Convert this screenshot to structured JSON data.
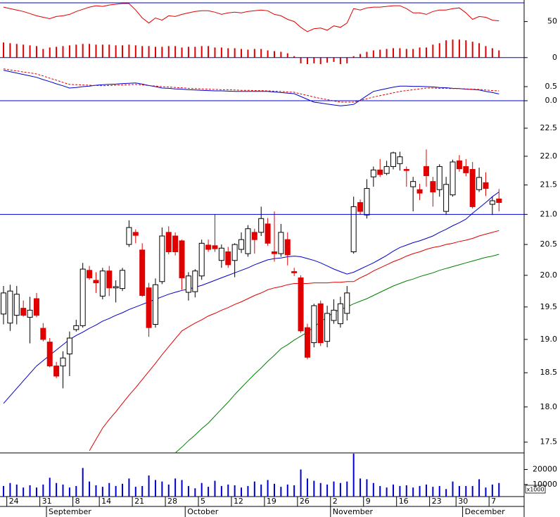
{
  "chart_data": [
    {
      "type": "combo",
      "ylim": [
        -10,
        76
      ],
      "yticks": [
        50,
        0
      ],
      "ref_lines": [
        0
      ],
      "ref_color": "#0000cc",
      "series": [
        {
          "kind": "bar",
          "color": "#e00000",
          "values": [
            21,
            20,
            19,
            18,
            17,
            16,
            12,
            14,
            15,
            16,
            17,
            18,
            19,
            19,
            18,
            18,
            18,
            17,
            17,
            18,
            17,
            16,
            16,
            15,
            15,
            16,
            16,
            14,
            15,
            15,
            16,
            16,
            14,
            14,
            13,
            13,
            12,
            11,
            12,
            12,
            10,
            9,
            8,
            6,
            2,
            -8,
            -9,
            -8,
            -9,
            -7,
            -6,
            -9,
            -8,
            2,
            5,
            8,
            10,
            11,
            12,
            13,
            13,
            12,
            12,
            14,
            14,
            18,
            20,
            24,
            25,
            25,
            24,
            22,
            20,
            16,
            13,
            10
          ]
        },
        {
          "kind": "line",
          "color": "#e00000",
          "values": [
            70,
            68,
            66,
            64,
            61,
            58,
            56,
            54,
            57,
            58,
            60,
            64,
            67,
            70,
            72,
            71,
            73,
            74,
            75,
            75,
            66,
            55,
            48,
            55,
            52,
            58,
            57,
            60,
            62,
            64,
            65,
            65,
            63,
            60,
            62,
            63,
            62,
            64,
            65,
            66,
            65,
            60,
            58,
            53,
            50,
            42,
            36,
            40,
            41,
            38,
            44,
            42,
            48,
            68,
            66,
            69,
            70,
            70,
            71,
            72,
            72,
            68,
            62,
            62,
            60,
            64,
            66,
            66,
            68,
            69,
            62,
            53,
            57,
            56,
            52,
            51
          ]
        }
      ]
    },
    {
      "type": "line",
      "ylim": [
        -0.2,
        1.4
      ],
      "yticks": [
        0.5,
        {
          "value": 0,
          "label": "0.0"
        }
      ],
      "ref_lines": [
        0
      ],
      "ref_color": "#0000cc",
      "series": [
        {
          "color": "#0000cc",
          "dashed": false,
          "values": [
            1.08,
            1.03,
            0.98,
            0.93,
            0.88,
            0.83,
            0.75,
            0.68,
            0.6,
            0.53,
            0.45,
            0.47,
            0.5,
            0.52,
            0.55,
            0.57,
            0.58,
            0.59,
            0.61,
            0.62,
            0.63,
            0.59,
            0.54,
            0.5,
            0.45,
            0.44,
            0.42,
            0.41,
            0.39,
            0.38,
            0.37,
            0.36,
            0.35,
            0.35,
            0.34,
            0.33,
            0.33,
            0.33,
            0.33,
            0.33,
            0.33,
            0.31,
            0.29,
            0.27,
            0.25,
            0.15,
            0.05,
            -0.05,
            -0.08,
            -0.12,
            -0.15,
            -0.18,
            -0.16,
            -0.13,
            0.02,
            0.18,
            0.33,
            0.38,
            0.43,
            0.48,
            0.52,
            0.52,
            0.51,
            0.51,
            0.5,
            0.49,
            0.47,
            0.46,
            0.44,
            0.43,
            0.41,
            0.4,
            0.38,
            0.33,
            0.29,
            0.24
          ]
        },
        {
          "color": "#e00000",
          "dashed": true,
          "values": [
            1.13,
            1.09,
            1.06,
            1.02,
            0.99,
            0.95,
            0.88,
            0.8,
            0.73,
            0.65,
            0.58,
            0.57,
            0.56,
            0.55,
            0.54,
            0.53,
            0.54,
            0.55,
            0.56,
            0.57,
            0.58,
            0.56,
            0.54,
            0.52,
            0.5,
            0.49,
            0.47,
            0.46,
            0.44,
            0.43,
            0.42,
            0.41,
            0.4,
            0.39,
            0.39,
            0.38,
            0.37,
            0.37,
            0.36,
            0.36,
            0.35,
            0.34,
            0.33,
            0.31,
            0.3,
            0.24,
            0.19,
            0.13,
            0.08,
            0.04,
            -0.01,
            -0.05,
            -0.05,
            -0.05,
            0.01,
            0.07,
            0.13,
            0.18,
            0.23,
            0.28,
            0.33,
            0.36,
            0.39,
            0.42,
            0.45,
            0.45,
            0.44,
            0.44,
            0.43,
            0.43,
            0.42,
            0.41,
            0.4,
            0.38,
            0.36,
            0.35
          ]
        }
      ]
    },
    {
      "type": "candlestick",
      "log_scale": true,
      "ylim": [
        17.35,
        23.0
      ],
      "yticks": [
        22.5,
        {
          "value": 22,
          "label": "22.0"
        },
        21.5,
        {
          "value": 21,
          "label": "21.0"
        },
        20.5,
        {
          "value": 20,
          "label": "20.0"
        },
        19.5,
        {
          "value": 19,
          "label": "19.0"
        },
        18.5,
        {
          "value": 18,
          "label": "18.0"
        },
        17.5
      ],
      "ref_lines": [
        21
      ],
      "ref_color": "#0000cc",
      "up_color": "#ffffff",
      "down_color": "#e00000",
      "outline_color": "#000000",
      "open": [
        19.39,
        19.25,
        19.37,
        19.48,
        19.34,
        19.63,
        19.17,
        18.96,
        18.6,
        18.6,
        18.78,
        19.15,
        19.21,
        20.08,
        19.92,
        19.67,
        20.07,
        19.8,
        19.79,
        20.5,
        20.7,
        20.41,
        19.8,
        19.23,
        19.9,
        20.7,
        20.64,
        20.56,
        19.73,
        19.74,
        19.99,
        20.49,
        20.48,
        20.24,
        20.38,
        20.24,
        20.42,
        20.35,
        20.7,
        20.7,
        20.84,
        20.38,
        20.35,
        20.58,
        20.06,
        19.96,
        19.18,
        18.95,
        19.55,
        18.97,
        19.29,
        19.24,
        19.4,
        20.38,
        21.2,
        20.99,
        21.64,
        21.76,
        21.7,
        21.82,
        21.87,
        21.77,
        21.47,
        21.42,
        21.82,
        21.56,
        21.42,
        21.05,
        21.33,
        21.92,
        21.82,
        21.77,
        21.42,
        21.54,
        21.17,
        21.26
      ],
      "high": [
        19.83,
        19.85,
        19.83,
        19.6,
        19.66,
        19.72,
        19.25,
        19.02,
        18.66,
        18.82,
        19.12,
        19.3,
        20.2,
        20.15,
        20.05,
        20.12,
        20.15,
        19.92,
        20.12,
        20.9,
        20.75,
        20.52,
        19.88,
        19.95,
        20.78,
        20.8,
        20.7,
        20.58,
        20.05,
        20.1,
        20.58,
        20.58,
        21.0,
        20.5,
        20.46,
        20.52,
        20.7,
        20.82,
        20.76,
        21.13,
        20.94,
        21.05,
        20.84,
        20.7,
        20.12,
        20.0,
        19.24,
        19.55,
        19.6,
        19.52,
        19.62,
        19.66,
        19.83,
        21.3,
        21.25,
        21.6,
        21.82,
        21.95,
        21.92,
        22.08,
        22.08,
        21.82,
        21.64,
        21.52,
        22.12,
        21.64,
        21.86,
        21.64,
        21.94,
        22.02,
        21.95,
        21.9,
        21.8,
        21.72,
        21.3,
        21.43
      ],
      "low": [
        19.23,
        19.13,
        19.23,
        19.35,
        18.94,
        19.34,
        18.97,
        18.58,
        18.42,
        18.27,
        18.45,
        19.12,
        19.18,
        19.93,
        19.72,
        19.62,
        19.67,
        19.57,
        19.75,
        20.46,
        20.52,
        19.66,
        19.04,
        19.18,
        19.86,
        20.34,
        20.32,
        19.77,
        19.6,
        19.65,
        19.93,
        20.38,
        20.38,
        20.12,
        20.12,
        19.97,
        20.36,
        20.3,
        20.35,
        20.64,
        20.48,
        20.22,
        20.3,
        20.16,
        19.99,
        19.1,
        18.7,
        18.88,
        18.9,
        18.88,
        19.24,
        19.18,
        19.29,
        20.35,
        21.0,
        20.93,
        21.47,
        21.64,
        21.67,
        21.77,
        21.75,
        21.47,
        21.05,
        21.24,
        21.47,
        21.13,
        21.3,
        20.99,
        21.3,
        21.73,
        21.65,
        21.1,
        21.38,
        21.31,
        20.99,
        21.05
      ],
      "close": [
        19.72,
        19.75,
        19.7,
        19.37,
        19.45,
        19.37,
        19.0,
        18.6,
        18.45,
        18.72,
        19.02,
        19.21,
        20.1,
        19.96,
        19.88,
        20.07,
        19.8,
        19.82,
        20.08,
        20.78,
        20.65,
        19.68,
        19.18,
        19.85,
        20.64,
        20.38,
        20.38,
        19.96,
        19.99,
        20.07,
        20.52,
        20.42,
        20.43,
        20.44,
        20.17,
        20.5,
        20.58,
        20.76,
        20.58,
        20.93,
        20.52,
        20.35,
        20.7,
        20.33,
        20.04,
        19.13,
        18.73,
        19.52,
        18.95,
        19.4,
        19.45,
        19.55,
        19.72,
        21.13,
        21.05,
        21.44,
        21.76,
        21.68,
        21.82,
        22.06,
        21.99,
        21.75,
        21.56,
        21.36,
        21.66,
        21.38,
        21.82,
        21.51,
        21.9,
        21.78,
        21.71,
        21.13,
        21.63,
        21.44,
        21.23,
        21.2
      ],
      "series": [
        {
          "color": "#0000cc",
          "values": [
            18.05,
            18.16,
            18.27,
            18.38,
            18.49,
            18.6,
            18.68,
            18.76,
            18.84,
            18.92,
            19.0,
            19.06,
            19.11,
            19.17,
            19.22,
            19.28,
            19.32,
            19.37,
            19.41,
            19.46,
            19.5,
            19.54,
            19.58,
            19.62,
            19.66,
            19.7,
            19.73,
            19.76,
            19.78,
            19.81,
            19.84,
            19.88,
            19.92,
            19.96,
            20.0,
            20.04,
            20.08,
            20.12,
            20.17,
            20.21,
            20.25,
            20.27,
            20.28,
            20.3,
            20.31,
            20.3,
            20.27,
            20.24,
            20.2,
            20.15,
            20.1,
            20.06,
            20.02,
            20.05,
            20.1,
            20.15,
            20.2,
            20.26,
            20.32,
            20.39,
            20.45,
            20.49,
            20.53,
            20.56,
            20.6,
            20.64,
            20.7,
            20.75,
            20.81,
            20.86,
            20.92,
            21.02,
            21.11,
            21.2,
            21.3,
            21.38
          ]
        },
        {
          "color": "#e00000",
          "values": [
            null,
            null,
            null,
            null,
            null,
            null,
            null,
            null,
            null,
            null,
            null,
            null,
            null,
            17.38,
            17.54,
            17.7,
            17.82,
            17.93,
            18.05,
            18.17,
            18.28,
            18.4,
            18.52,
            18.64,
            18.77,
            18.89,
            19.01,
            19.13,
            19.19,
            19.25,
            19.3,
            19.36,
            19.4,
            19.45,
            19.49,
            19.54,
            19.58,
            19.63,
            19.68,
            19.72,
            19.77,
            19.8,
            19.82,
            19.85,
            19.87,
            19.87,
            19.87,
            19.88,
            19.88,
            19.88,
            19.89,
            19.89,
            19.9,
            19.9,
            19.96,
            20.01,
            20.07,
            20.12,
            20.17,
            20.22,
            20.26,
            20.31,
            20.35,
            20.38,
            20.42,
            20.45,
            20.47,
            20.5,
            20.52,
            20.55,
            20.57,
            20.6,
            20.64,
            20.67,
            20.7,
            20.73
          ]
        },
        {
          "color": "#008000",
          "values": [
            null,
            null,
            null,
            null,
            null,
            null,
            null,
            null,
            null,
            null,
            null,
            null,
            null,
            null,
            null,
            null,
            null,
            null,
            null,
            null,
            null,
            null,
            null,
            null,
            null,
            null,
            17.35,
            17.43,
            17.52,
            17.6,
            17.69,
            17.77,
            17.87,
            17.97,
            18.07,
            18.18,
            18.28,
            18.38,
            18.48,
            18.57,
            18.67,
            18.76,
            18.86,
            18.92,
            18.99,
            19.05,
            19.11,
            19.19,
            19.27,
            19.34,
            19.42,
            19.46,
            19.5,
            19.55,
            19.59,
            19.63,
            19.68,
            19.73,
            19.78,
            19.83,
            19.87,
            19.91,
            19.94,
            19.98,
            20.01,
            20.04,
            20.08,
            20.11,
            20.14,
            20.17,
            20.2,
            20.23,
            20.26,
            20.29,
            20.31,
            20.34
          ]
        }
      ]
    },
    {
      "type": "bar",
      "ylim": [
        2000,
        31000
      ],
      "yticks": [
        20000,
        10000
      ],
      "unit_label": "x1000",
      "color": "#0000cc",
      "values": [
        9000,
        11000,
        10000,
        8000,
        9500,
        8000,
        10000,
        14500,
        11000,
        10000,
        8000,
        9000,
        21000,
        12000,
        9500,
        8500,
        11000,
        9000,
        10500,
        14000,
        8500,
        9000,
        16000,
        13000,
        12000,
        10000,
        14000,
        13000,
        9000,
        7500,
        11000,
        8500,
        12500,
        9000,
        10000,
        9500,
        8000,
        9000,
        12000,
        10000,
        13000,
        10500,
        8500,
        10000,
        9500,
        20000,
        14000,
        12500,
        11000,
        10000,
        12000,
        11000,
        12000,
        30500,
        14000,
        13500,
        11000,
        9000,
        8000,
        10000,
        9000,
        9500,
        8000,
        9000,
        10000,
        8500,
        9000,
        7000,
        12000,
        9000,
        9000,
        9000,
        13500,
        8000,
        10000,
        11000
      ],
      "categories": [
        null,
        "24",
        null,
        null,
        null,
        null,
        "31",
        null,
        null,
        null,
        null,
        "8",
        null,
        null,
        null,
        "14",
        null,
        null,
        null,
        null,
        "21",
        null,
        null,
        null,
        null,
        "28",
        null,
        null,
        null,
        null,
        "5",
        null,
        null,
        null,
        null,
        "12",
        null,
        null,
        null,
        null,
        "19",
        null,
        null,
        null,
        null,
        "26",
        null,
        null,
        null,
        null,
        "2",
        null,
        null,
        null,
        null,
        "9",
        null,
        null,
        null,
        null,
        "16",
        null,
        null,
        null,
        null,
        "23",
        null,
        null,
        null,
        "30",
        null,
        null,
        null,
        null,
        "7",
        null
      ],
      "months": [
        null,
        null,
        null,
        null,
        null,
        null,
        null,
        "September",
        null,
        null,
        null,
        null,
        null,
        null,
        null,
        null,
        null,
        null,
        null,
        null,
        null,
        null,
        null,
        null,
        null,
        null,
        null,
        null,
        "October",
        null,
        null,
        null,
        null,
        null,
        null,
        null,
        null,
        null,
        null,
        null,
        null,
        null,
        null,
        null,
        null,
        null,
        null,
        null,
        null,
        null,
        "November",
        null,
        null,
        null,
        null,
        null,
        null,
        null,
        null,
        null,
        null,
        null,
        null,
        null,
        null,
        null,
        null,
        null,
        null,
        null,
        "December",
        null,
        null,
        null,
        null,
        null
      ]
    }
  ]
}
